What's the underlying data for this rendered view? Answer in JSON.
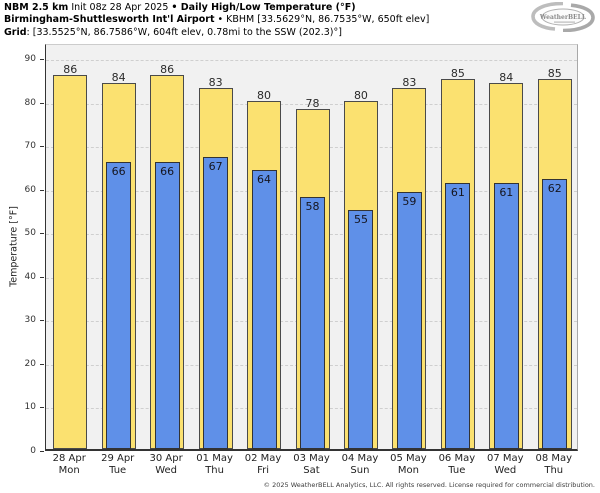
{
  "header": {
    "line1": {
      "model": "NBM 2.5 km",
      "init": " Init 08z 28 Apr 2025 ",
      "title": "• Daily High/Low Temperature (°F)"
    },
    "line2": {
      "station": "Birmingham-Shuttlesworth Int'l Airport",
      "details": " • KBHM [33.5629°N, 86.7535°W, 650ft elev]"
    },
    "line3": {
      "label": "Grid",
      "details": ": [33.5525°N, 86.7586°W, 604ft elev, 0.78mi to the SSW (202.3)°]"
    }
  },
  "logo": {
    "text": "WeatherBELL"
  },
  "chart_data": {
    "type": "bar",
    "title": "Daily High/Low Temperature (°F)",
    "ylabel": "Temperature [°F]",
    "ylim": [
      0,
      93.5
    ],
    "yticks": [
      0,
      10,
      20,
      30,
      40,
      50,
      60,
      70,
      80,
      90
    ],
    "grid": true,
    "legend_position": "none",
    "categories": [
      {
        "date": "28 Apr",
        "day": "Mon"
      },
      {
        "date": "29 Apr",
        "day": "Tue"
      },
      {
        "date": "30 Apr",
        "day": "Wed"
      },
      {
        "date": "01 May",
        "day": "Thu"
      },
      {
        "date": "02 May",
        "day": "Fri"
      },
      {
        "date": "03 May",
        "day": "Sat"
      },
      {
        "date": "04 May",
        "day": "Sun"
      },
      {
        "date": "05 May",
        "day": "Mon"
      },
      {
        "date": "06 May",
        "day": "Tue"
      },
      {
        "date": "07 May",
        "day": "Wed"
      },
      {
        "date": "08 May",
        "day": "Thu"
      }
    ],
    "series": [
      {
        "name": "Daily High",
        "color": "#fbe170",
        "border_color": "#4a4a4a",
        "values": [
          86,
          84,
          86,
          83,
          80,
          78,
          80,
          83,
          85,
          84,
          85
        ]
      },
      {
        "name": "Daily Low",
        "color": "#5f90e8",
        "border_color": "#333333",
        "values": [
          null,
          66,
          66,
          67,
          64,
          58,
          55,
          59,
          61,
          61,
          62
        ]
      }
    ]
  },
  "footer": "© 2025 WeatherBELL Analytics, LLC. All rights reserved. License required for commercial distribution."
}
